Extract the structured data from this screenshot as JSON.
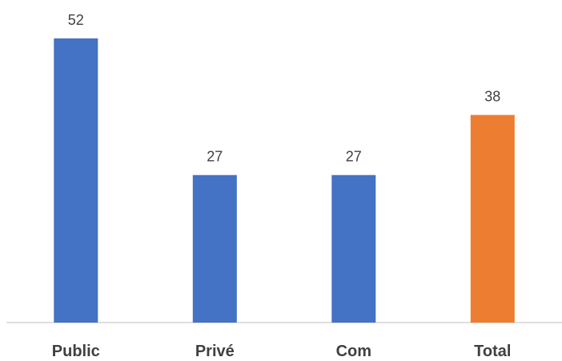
{
  "chart_data": {
    "type": "bar",
    "title": "",
    "xlabel": "",
    "ylabel": "",
    "categories": [
      "Public",
      "Privé",
      "Com",
      "Total"
    ],
    "values": [
      52,
      27,
      27,
      38
    ],
    "bar_colors": [
      "#4472C4",
      "#4472C4",
      "#4472C4",
      "#ED7D31"
    ],
    "label_color": "#404040",
    "axis_color": "#BFBFBF",
    "ylim": [
      0,
      55
    ],
    "grid": false,
    "legend": "none"
  }
}
